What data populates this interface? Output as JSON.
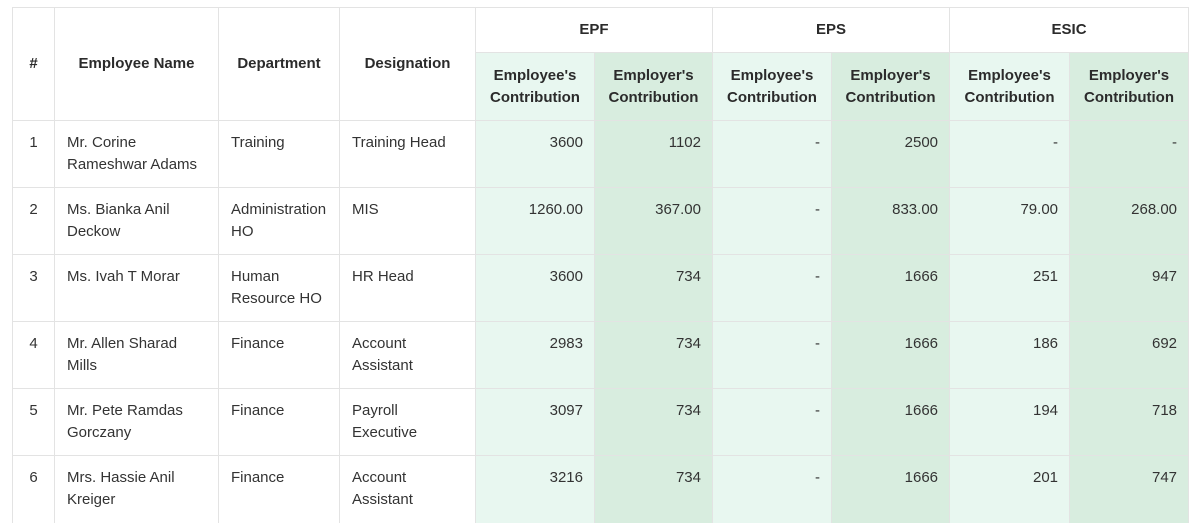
{
  "headers": {
    "index": "#",
    "employee_name": "Employee Name",
    "department": "Department",
    "designation": "Designation",
    "groups": [
      "EPF",
      "EPS",
      "ESIC"
    ],
    "employee_contribution": [
      "Employee's",
      "Contribution"
    ],
    "employer_contribution": [
      "Employer's",
      "Contribution"
    ]
  },
  "rows": [
    {
      "index": "1",
      "name": [
        "Mr. Corine",
        "Rameshwar Adams"
      ],
      "department": [
        "Training"
      ],
      "designation": [
        "Training Head"
      ],
      "epf_ee": "3600",
      "epf_er": "1102",
      "eps_ee": "-",
      "eps_er": "2500",
      "esic_ee": "-",
      "esic_er": "-"
    },
    {
      "index": "2",
      "name": [
        "Ms. Bianka Anil",
        "Deckow"
      ],
      "department": [
        "Administration",
        "HO"
      ],
      "designation": [
        "MIS"
      ],
      "epf_ee": "1260.00",
      "epf_er": "367.00",
      "eps_ee": "-",
      "eps_er": "833.00",
      "esic_ee": "79.00",
      "esic_er": "268.00"
    },
    {
      "index": "3",
      "name": [
        "Ms. Ivah T Morar"
      ],
      "department": [
        "Human",
        "Resource HO"
      ],
      "designation": [
        "HR Head"
      ],
      "epf_ee": "3600",
      "epf_er": "734",
      "eps_ee": "-",
      "eps_er": "1666",
      "esic_ee": "251",
      "esic_er": "947"
    },
    {
      "index": "4",
      "name": [
        "Mr. Allen Sharad",
        "Mills"
      ],
      "department": [
        "Finance"
      ],
      "designation": [
        "Account",
        "Assistant"
      ],
      "epf_ee": "2983",
      "epf_er": "734",
      "eps_ee": "-",
      "eps_er": "1666",
      "esic_ee": "186",
      "esic_er": "692"
    },
    {
      "index": "5",
      "name": [
        "Mr. Pete Ramdas",
        "Gorczany"
      ],
      "department": [
        "Finance"
      ],
      "designation": [
        "Payroll",
        "Executive"
      ],
      "epf_ee": "3097",
      "epf_er": "734",
      "eps_ee": "-",
      "eps_er": "1666",
      "esic_ee": "194",
      "esic_er": "718"
    },
    {
      "index": "6",
      "name": [
        "Mrs. Hassie Anil",
        "Kreiger"
      ],
      "department": [
        "Finance"
      ],
      "designation": [
        "Account",
        "Assistant"
      ],
      "epf_ee": "3216",
      "epf_er": "734",
      "eps_ee": "-",
      "eps_er": "1666",
      "esic_ee": "201",
      "esic_er": "747"
    }
  ]
}
